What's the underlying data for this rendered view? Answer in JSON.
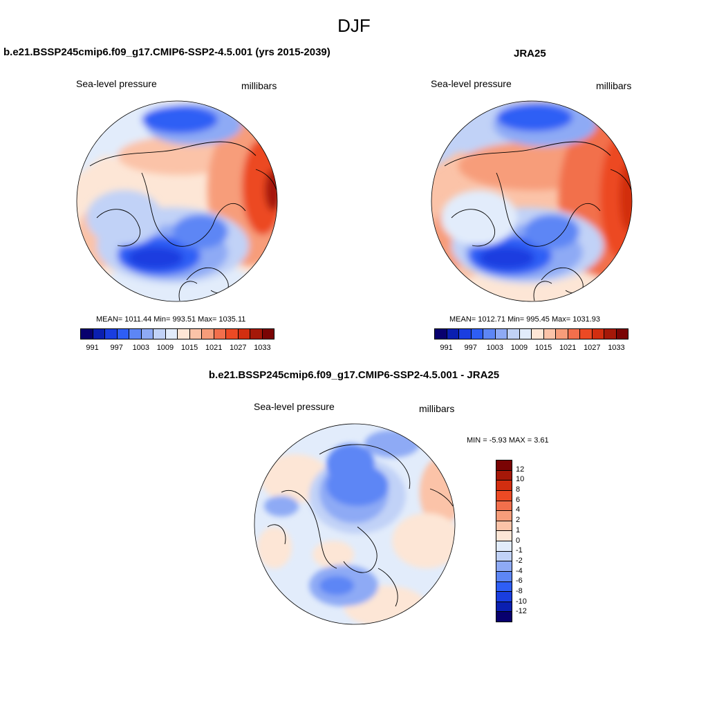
{
  "season": "DJF",
  "panels": [
    {
      "title": "b.e21.BSSP245cmip6.f09_g17.CMIP6-SSP2-4.5.001 (yrs 2015-2039)",
      "variable": "Sea-level pressure",
      "units": "millibars",
      "stats": "MEAN= 1011.44  Min= 993.51  Max= 1035.11"
    },
    {
      "title": "JRA25",
      "variable": "Sea-level pressure",
      "units": "millibars",
      "stats": "MEAN= 1012.71  Min= 995.45  Max= 1031.93"
    }
  ],
  "diff_panel": {
    "title": "b.e21.BSSP245cmip6.f09_g17.CMIP6-SSP2-4.5.001 - JRA25",
    "variable": "Sea-level pressure",
    "units": "millibars",
    "stats": "MIN =  -5.93 MAX =   3.61"
  },
  "abs_colorbar": {
    "colors": [
      "#08006e",
      "#0a1fb0",
      "#1a3ee0",
      "#2e5ef5",
      "#5d86f5",
      "#8eaaf5",
      "#c1d2f7",
      "#e2ecfb",
      "#fde6d6",
      "#fbc3a8",
      "#f79d7a",
      "#f26f4c",
      "#ec4a24",
      "#d22e10",
      "#a51808",
      "#7a0404"
    ],
    "tick_labels": [
      "991",
      "997",
      "1003",
      "1009",
      "1015",
      "1021",
      "1027",
      "1033"
    ]
  },
  "diff_colorbar": {
    "colors": [
      "#08006e",
      "#0a1fb0",
      "#1a3ee0",
      "#2e5ef5",
      "#5d86f5",
      "#8eaaf5",
      "#c1d2f7",
      "#e2ecfb",
      "#fde6d6",
      "#fbc3a8",
      "#f79d7a",
      "#f26f4c",
      "#ec4a24",
      "#d22e10",
      "#a51808",
      "#7a0404"
    ],
    "tick_labels": [
      "-12",
      "-10",
      "-8",
      "-6",
      "-4",
      "-2",
      "-1",
      "0",
      "1",
      "2",
      "4",
      "6",
      "8",
      "10",
      "12"
    ]
  }
}
